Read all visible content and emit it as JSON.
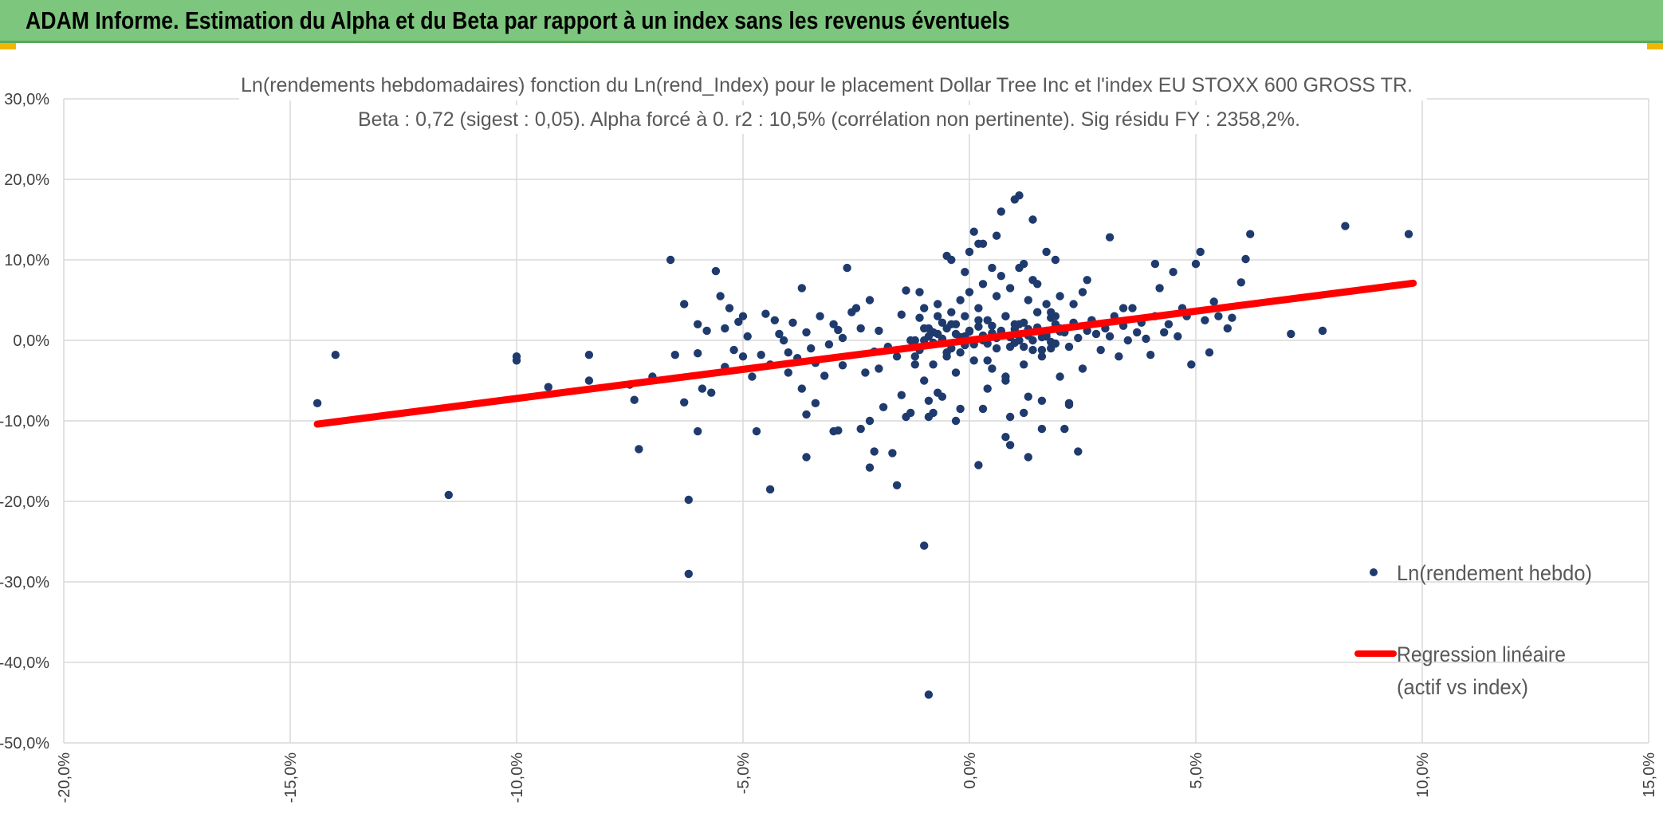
{
  "banner": {
    "title": "ADAM Informe. Estimation du Alpha et du Beta par rapport à un index sans les revenus éventuels"
  },
  "colors": {
    "banner": "#7dc67d",
    "points": "#1f3b6e",
    "regression": "#ff0000",
    "grid": "#d9d9d9",
    "text": "#595959"
  },
  "chart_data": {
    "type": "scatter",
    "title": "Ln(rendements hebdomadaires) fonction du Ln(rend_Index) pour le placement Dollar Tree Inc et l'index EU STOXX 600 GROSS TR.",
    "subtitle": "Beta : 0,72 (sigest : 0,05). Alpha forcé à 0. r2 : 10,5% (corrélation non pertinente). Sig résidu FY : 2358,2%.",
    "xlabel": "",
    "ylabel": "",
    "xlim": [
      -0.2,
      0.15
    ],
    "ylim": [
      -0.5,
      0.3
    ],
    "x_ticks": [
      "-20,0%",
      "-15,0%",
      "-10,0%",
      "-5,0%",
      "0,0%",
      "5,0%",
      "10,0%",
      "15,0%"
    ],
    "y_ticks": [
      "30,0%",
      "20,0%",
      "10,0%",
      "0,0%",
      "-10,0%",
      "-20,0%",
      "-30,0%",
      "-40,0%",
      "-50,0%"
    ],
    "grid": true,
    "legend_position": "right",
    "series": [
      {
        "name": "Ln(rendement hebdo)",
        "kind": "points",
        "x": [
          -0.144,
          -0.14,
          -0.115,
          -0.1,
          -0.1,
          -0.093,
          -0.084,
          -0.084,
          -0.075,
          -0.074,
          -0.073,
          -0.07,
          -0.066,
          -0.065,
          -0.063,
          -0.063,
          -0.062,
          -0.06,
          -0.06,
          -0.06,
          -0.059,
          -0.058,
          -0.057,
          -0.056,
          -0.055,
          -0.054,
          -0.054,
          -0.053,
          -0.052,
          -0.051,
          -0.05,
          -0.05,
          -0.049,
          -0.048,
          -0.047,
          -0.046,
          -0.045,
          -0.044,
          -0.044,
          -0.043,
          -0.042,
          -0.041,
          -0.04,
          -0.04,
          -0.039,
          -0.038,
          -0.037,
          -0.037,
          -0.036,
          -0.036,
          -0.035,
          -0.034,
          -0.034,
          -0.033,
          -0.032,
          -0.031,
          -0.03,
          -0.03,
          -0.029,
          -0.028,
          -0.028,
          -0.027,
          -0.026,
          -0.025,
          -0.024,
          -0.024,
          -0.023,
          -0.022,
          -0.022,
          -0.021,
          -0.02,
          -0.02,
          -0.019,
          -0.018,
          -0.017,
          -0.016,
          -0.016,
          -0.015,
          -0.014,
          -0.013,
          -0.012,
          -0.012,
          -0.011,
          -0.01,
          -0.01,
          -0.009,
          -0.008,
          -0.007,
          -0.006,
          -0.005,
          -0.004,
          -0.003,
          -0.002,
          -0.001,
          0.0,
          0.001,
          0.002,
          0.003,
          0.004,
          0.005,
          0.006,
          0.007,
          0.008,
          0.009,
          0.01,
          0.011,
          0.012,
          0.013,
          0.014,
          0.015,
          0.016,
          0.017,
          0.018,
          0.019,
          0.02,
          0.021,
          0.022,
          0.023,
          0.024,
          0.025,
          0.026,
          0.027,
          0.028,
          0.029,
          0.03,
          0.031,
          0.032,
          0.033,
          0.034,
          0.035,
          0.036,
          0.037,
          0.038,
          0.039,
          0.04,
          0.041,
          0.042,
          0.043,
          0.044,
          0.045,
          0.046,
          0.047,
          0.048,
          0.049,
          0.05,
          0.051,
          0.052,
          0.053,
          0.054,
          0.055,
          0.057,
          0.058,
          0.06,
          0.061,
          0.062,
          0.071,
          0.078,
          0.083,
          0.097,
          -0.01,
          -0.009,
          -0.008,
          -0.007,
          -0.006,
          -0.005,
          -0.004,
          -0.003,
          -0.002,
          -0.001,
          0.0,
          0.001,
          0.002,
          0.003,
          0.004,
          0.005,
          0.006,
          0.007,
          0.008,
          0.009,
          0.01,
          0.011,
          0.012,
          0.013,
          0.014,
          0.015,
          0.016,
          0.017,
          0.018,
          0.019,
          0.02,
          -0.012,
          -0.011,
          -0.01,
          -0.009,
          -0.008,
          -0.007,
          -0.006,
          -0.005,
          -0.004,
          -0.003,
          -0.002,
          -0.001,
          0.0,
          0.001,
          0.002,
          0.003,
          0.004,
          0.005,
          0.006,
          0.007,
          0.008,
          0.009,
          0.01,
          0.011,
          0.012,
          0.013,
          0.014,
          0.015,
          0.016,
          0.017,
          0.018,
          0.019,
          0.02,
          0.021,
          0.022,
          -0.008,
          -0.006,
          -0.004,
          -0.002,
          0.0,
          0.002,
          0.004,
          0.006,
          0.008,
          0.01,
          0.012,
          0.014,
          0.016,
          0.018,
          -0.009,
          -0.007,
          -0.005,
          -0.003,
          -0.001,
          0.001,
          0.003,
          0.005,
          0.007,
          0.009,
          0.011,
          0.013,
          0.015,
          0.017,
          0.019,
          -0.015,
          -0.013,
          -0.011,
          0.021,
          0.023,
          0.025,
          0.027,
          -0.062,
          -0.036,
          -0.029,
          -0.022,
          -0.021,
          -0.014,
          -0.01,
          -0.009,
          0.002,
          0.009,
          0.013,
          0.016,
          0.022,
          0.024,
          0.031,
          0.003,
          0.008,
          0.012,
          0.017,
          0.02,
          0.026,
          0.034,
          0.041
        ],
        "y": [
          -0.078,
          -0.018,
          -0.192,
          -0.02,
          -0.025,
          -0.058,
          -0.05,
          -0.018,
          -0.055,
          -0.074,
          -0.135,
          -0.045,
          0.1,
          -0.018,
          0.045,
          -0.077,
          -0.198,
          -0.016,
          -0.113,
          0.02,
          -0.06,
          0.012,
          -0.065,
          0.086,
          0.055,
          -0.033,
          0.015,
          0.04,
          -0.012,
          0.023,
          -0.02,
          0.03,
          0.005,
          -0.045,
          -0.113,
          -0.018,
          0.033,
          -0.185,
          -0.03,
          0.025,
          0.008,
          0.0,
          -0.015,
          -0.04,
          0.022,
          -0.022,
          -0.06,
          0.065,
          0.01,
          -0.092,
          -0.01,
          -0.028,
          -0.078,
          0.03,
          -0.044,
          -0.005,
          0.02,
          -0.113,
          0.013,
          0.003,
          -0.031,
          0.09,
          0.035,
          0.04,
          0.015,
          -0.11,
          -0.04,
          -0.1,
          0.05,
          -0.014,
          -0.035,
          0.012,
          -0.083,
          -0.008,
          -0.14,
          -0.18,
          -0.02,
          0.032,
          0.062,
          -0.09,
          0.0,
          -0.03,
          -0.012,
          -0.05,
          0.015,
          -0.075,
          0.01,
          0.03,
          0.002,
          -0.02,
          0.02,
          0.008,
          -0.015,
          0.005,
          0.011,
          -0.005,
          0.017,
          0.0,
          -0.025,
          0.009,
          -0.01,
          0.012,
          0.03,
          0.004,
          -0.003,
          0.02,
          -0.008,
          0.014,
          0.0,
          0.035,
          -0.012,
          0.005,
          0.028,
          -0.004,
          0.015,
          0.01,
          -0.008,
          0.022,
          0.003,
          0.06,
          0.012,
          0.025,
          0.008,
          -0.012,
          0.015,
          0.005,
          0.03,
          -0.02,
          0.018,
          0.0,
          0.04,
          0.01,
          0.022,
          0.002,
          -0.018,
          0.03,
          0.065,
          0.01,
          0.02,
          0.085,
          0.005,
          0.04,
          0.03,
          -0.03,
          0.095,
          0.11,
          0.025,
          -0.015,
          0.048,
          0.03,
          0.015,
          0.028,
          0.072,
          0.101,
          0.132,
          0.008,
          0.012,
          0.142,
          0.132,
          0.0,
          0.005,
          -0.003,
          0.008,
          0.002,
          0.015,
          -0.01,
          0.02,
          0.004,
          -0.006,
          0.012,
          0.0,
          0.025,
          0.006,
          -0.004,
          0.018,
          0.003,
          0.01,
          0.03,
          -0.008,
          0.014,
          0.0,
          0.022,
          0.006,
          -0.012,
          0.016,
          0.004,
          0.009,
          -0.002,
          0.02,
          0.011,
          -0.02,
          0.028,
          0.04,
          0.015,
          -0.03,
          0.045,
          0.022,
          -0.015,
          0.035,
          -0.04,
          0.05,
          0.03,
          0.06,
          -0.025,
          0.04,
          0.07,
          0.025,
          -0.035,
          0.055,
          0.08,
          -0.045,
          0.065,
          0.02,
          0.09,
          -0.03,
          0.05,
          0.075,
          0.035,
          -0.02,
          0.045,
          -0.01,
          0.03,
          0.055,
          0.015,
          -0.08,
          -0.09,
          -0.07,
          0.1,
          -0.085,
          0.11,
          0.12,
          -0.06,
          0.13,
          -0.05,
          0.175,
          0.095,
          0.15,
          -0.075,
          0.035,
          -0.095,
          -0.065,
          0.105,
          -0.1,
          0.085,
          0.135,
          -0.085,
          0.09,
          0.16,
          -0.095,
          0.18,
          -0.07,
          0.07,
          0.012,
          0.1,
          -0.068,
          0.0,
          0.06,
          -0.11,
          0.045,
          -0.035,
          0.025,
          -0.29,
          -0.145,
          -0.112,
          -0.158,
          -0.138,
          -0.095,
          -0.255,
          -0.44,
          -0.155,
          -0.13,
          -0.145,
          -0.11,
          -0.078,
          -0.138,
          0.128,
          0.12,
          -0.12,
          -0.09,
          0.11,
          -0.045,
          0.075,
          0.04,
          0.095
        ]
      },
      {
        "name": "Regression linéaire (actif vs index)",
        "name_lines": [
          "Regression linéaire",
          "(actif vs index)"
        ],
        "kind": "line",
        "x": [
          -0.144,
          0.098
        ],
        "y": [
          -0.104,
          0.071
        ]
      }
    ]
  }
}
